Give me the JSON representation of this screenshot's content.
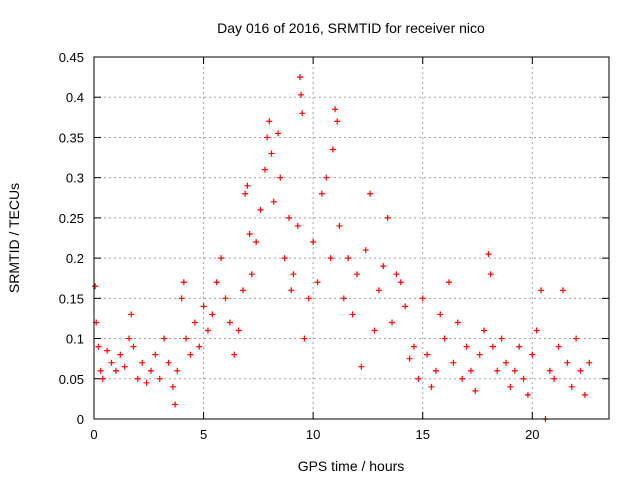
{
  "chart_data": {
    "type": "scatter",
    "title": "Day 016 of 2016, SRMTID for receiver nico",
    "xlabel": "GPS time / hours",
    "ylabel": "SRMTID / TECUs",
    "xlim": [
      0,
      23.5
    ],
    "ylim": [
      0,
      0.45
    ],
    "xticks": [
      0,
      5,
      10,
      15,
      20
    ],
    "xtick_labels": [
      "0",
      "5",
      "10",
      "15",
      "20"
    ],
    "yticks": [
      0,
      0.05,
      0.1,
      0.15,
      0.2,
      0.25,
      0.3,
      0.35,
      0.4,
      0.45
    ],
    "ytick_labels": [
      "0",
      "0.05",
      "0.1",
      "0.15",
      "0.2",
      "0.25",
      "0.3",
      "0.35",
      "0.4",
      "0.45"
    ],
    "grid": true,
    "marker": "plus",
    "marker_color": "#ff0000",
    "series": [
      {
        "name": "SRMTID",
        "points": [
          [
            0.05,
            0.165
          ],
          [
            0.1,
            0.12
          ],
          [
            0.2,
            0.09
          ],
          [
            0.3,
            0.06
          ],
          [
            0.4,
            0.05
          ],
          [
            0.6,
            0.085
          ],
          [
            0.8,
            0.07
          ],
          [
            1.0,
            0.06
          ],
          [
            1.2,
            0.08
          ],
          [
            1.4,
            0.065
          ],
          [
            1.6,
            0.1
          ],
          [
            1.7,
            0.13
          ],
          [
            1.8,
            0.09
          ],
          [
            2.0,
            0.05
          ],
          [
            2.2,
            0.07
          ],
          [
            2.4,
            0.045
          ],
          [
            2.6,
            0.06
          ],
          [
            2.8,
            0.08
          ],
          [
            3.0,
            0.05
          ],
          [
            3.2,
            0.1
          ],
          [
            3.4,
            0.07
          ],
          [
            3.6,
            0.04
          ],
          [
            3.7,
            0.018
          ],
          [
            3.8,
            0.06
          ],
          [
            4.0,
            0.15
          ],
          [
            4.1,
            0.17
          ],
          [
            4.2,
            0.1
          ],
          [
            4.4,
            0.08
          ],
          [
            4.6,
            0.12
          ],
          [
            4.8,
            0.09
          ],
          [
            5.0,
            0.14
          ],
          [
            5.2,
            0.11
          ],
          [
            5.4,
            0.13
          ],
          [
            5.6,
            0.17
          ],
          [
            5.8,
            0.2
          ],
          [
            6.0,
            0.15
          ],
          [
            6.2,
            0.12
          ],
          [
            6.4,
            0.08
          ],
          [
            6.6,
            0.11
          ],
          [
            6.8,
            0.16
          ],
          [
            6.9,
            0.28
          ],
          [
            7.0,
            0.29
          ],
          [
            7.1,
            0.23
          ],
          [
            7.2,
            0.18
          ],
          [
            7.4,
            0.22
          ],
          [
            7.6,
            0.26
          ],
          [
            7.8,
            0.31
          ],
          [
            7.9,
            0.35
          ],
          [
            8.0,
            0.37
          ],
          [
            8.1,
            0.33
          ],
          [
            8.2,
            0.27
          ],
          [
            8.4,
            0.355
          ],
          [
            8.5,
            0.3
          ],
          [
            8.7,
            0.2
          ],
          [
            8.9,
            0.25
          ],
          [
            9.0,
            0.16
          ],
          [
            9.1,
            0.18
          ],
          [
            9.3,
            0.24
          ],
          [
            9.4,
            0.425
          ],
          [
            9.45,
            0.403
          ],
          [
            9.5,
            0.38
          ],
          [
            9.6,
            0.1
          ],
          [
            9.8,
            0.15
          ],
          [
            10.0,
            0.22
          ],
          [
            10.2,
            0.17
          ],
          [
            10.4,
            0.28
          ],
          [
            10.6,
            0.3
          ],
          [
            10.8,
            0.2
          ],
          [
            10.9,
            0.335
          ],
          [
            11.0,
            0.385
          ],
          [
            11.1,
            0.37
          ],
          [
            11.2,
            0.24
          ],
          [
            11.4,
            0.15
          ],
          [
            11.6,
            0.2
          ],
          [
            11.8,
            0.13
          ],
          [
            12.0,
            0.18
          ],
          [
            12.2,
            0.065
          ],
          [
            12.4,
            0.21
          ],
          [
            12.6,
            0.28
          ],
          [
            12.8,
            0.11
          ],
          [
            13.0,
            0.16
          ],
          [
            13.2,
            0.19
          ],
          [
            13.4,
            0.25
          ],
          [
            13.6,
            0.12
          ],
          [
            13.8,
            0.18
          ],
          [
            14.0,
            0.17
          ],
          [
            14.2,
            0.14
          ],
          [
            14.4,
            0.075
          ],
          [
            14.6,
            0.09
          ],
          [
            14.8,
            0.05
          ],
          [
            15.0,
            0.15
          ],
          [
            15.2,
            0.08
          ],
          [
            15.4,
            0.04
          ],
          [
            15.6,
            0.06
          ],
          [
            15.8,
            0.13
          ],
          [
            16.0,
            0.1
          ],
          [
            16.2,
            0.17
          ],
          [
            16.4,
            0.07
          ],
          [
            16.6,
            0.12
          ],
          [
            16.8,
            0.05
          ],
          [
            17.0,
            0.09
          ],
          [
            17.2,
            0.06
          ],
          [
            17.4,
            0.035
          ],
          [
            17.6,
            0.08
          ],
          [
            17.8,
            0.11
          ],
          [
            18.0,
            0.205
          ],
          [
            18.1,
            0.18
          ],
          [
            18.2,
            0.09
          ],
          [
            18.4,
            0.06
          ],
          [
            18.6,
            0.1
          ],
          [
            18.8,
            0.07
          ],
          [
            19.0,
            0.04
          ],
          [
            19.2,
            0.06
          ],
          [
            19.4,
            0.09
          ],
          [
            19.6,
            0.05
          ],
          [
            19.8,
            0.03
          ],
          [
            20.0,
            0.08
          ],
          [
            20.2,
            0.11
          ],
          [
            20.4,
            0.16
          ],
          [
            20.6,
            0.0
          ],
          [
            20.8,
            0.06
          ],
          [
            21.0,
            0.05
          ],
          [
            21.2,
            0.09
          ],
          [
            21.4,
            0.16
          ],
          [
            21.6,
            0.07
          ],
          [
            21.8,
            0.04
          ],
          [
            22.0,
            0.1
          ],
          [
            22.2,
            0.06
          ],
          [
            22.4,
            0.03
          ],
          [
            22.6,
            0.07
          ]
        ]
      }
    ]
  }
}
